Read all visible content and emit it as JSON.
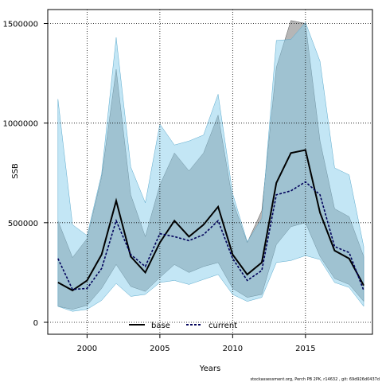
{
  "chart_data": {
    "type": "line",
    "title": "",
    "xlabel": "Years",
    "ylabel": "SSB",
    "xlim": [
      1997.3,
      2019.6
    ],
    "ylim": [
      -60000,
      1570000
    ],
    "x_ticks": [
      2000,
      2005,
      2010,
      2015
    ],
    "x_tick_labels": [
      "2000",
      "2005",
      "2010",
      "2015"
    ],
    "y_ticks": [
      0,
      500000,
      1000000,
      1500000
    ],
    "y_tick_labels": [
      "0",
      "500000",
      "1000000",
      "1500000"
    ],
    "grid": true,
    "legend_position": "bottom-center",
    "x": [
      1998,
      1999,
      2000,
      2001,
      2002,
      2003,
      2004,
      2005,
      2006,
      2007,
      2008,
      2009,
      2010,
      2011,
      2012,
      2013,
      2014,
      2015,
      2016,
      2017,
      2018,
      2019
    ],
    "series": [
      {
        "name": "base",
        "color": "#000000",
        "values": [
          200000,
          160000,
          210000,
          340000,
          610000,
          330000,
          250000,
          400000,
          510000,
          430000,
          490000,
          580000,
          340000,
          240000,
          300000,
          700000,
          850000,
          865000,
          550000,
          360000,
          320000,
          185000
        ],
        "band_low": [
          80000,
          65000,
          85000,
          170000,
          290000,
          180000,
          155000,
          225000,
          290000,
          250000,
          280000,
          300000,
          170000,
          125000,
          140000,
          390000,
          480000,
          500000,
          330000,
          220000,
          190000,
          105000
        ],
        "band_high": [
          510000,
          325000,
          420000,
          730000,
          1270000,
          640000,
          430000,
          690000,
          850000,
          760000,
          850000,
          1040000,
          610000,
          400000,
          560000,
          1280000,
          1515000,
          1500000,
          910000,
          570000,
          530000,
          330000
        ],
        "band_color": "#7a7a7a"
      },
      {
        "name": "current",
        "color": "#00005a",
        "values": [
          320000,
          165000,
          170000,
          270000,
          510000,
          340000,
          280000,
          445000,
          430000,
          410000,
          440000,
          510000,
          320000,
          210000,
          260000,
          640000,
          660000,
          705000,
          640000,
          380000,
          350000,
          160000
        ],
        "band_low": [
          80000,
          55000,
          65000,
          110000,
          195000,
          130000,
          140000,
          200000,
          210000,
          190000,
          215000,
          240000,
          140000,
          105000,
          125000,
          300000,
          310000,
          335000,
          315000,
          200000,
          175000,
          80000
        ],
        "band_high": [
          1120000,
          490000,
          435000,
          745000,
          1430000,
          780000,
          600000,
          995000,
          890000,
          910000,
          940000,
          1145000,
          645000,
          405000,
          520000,
          1415000,
          1420000,
          1505000,
          1310000,
          775000,
          740000,
          380000
        ],
        "band_color": "#87ceeb"
      }
    ]
  },
  "footnote": "stockassessment.org, Perch PB 2PK, r14632 , git: 69d926d0437d"
}
